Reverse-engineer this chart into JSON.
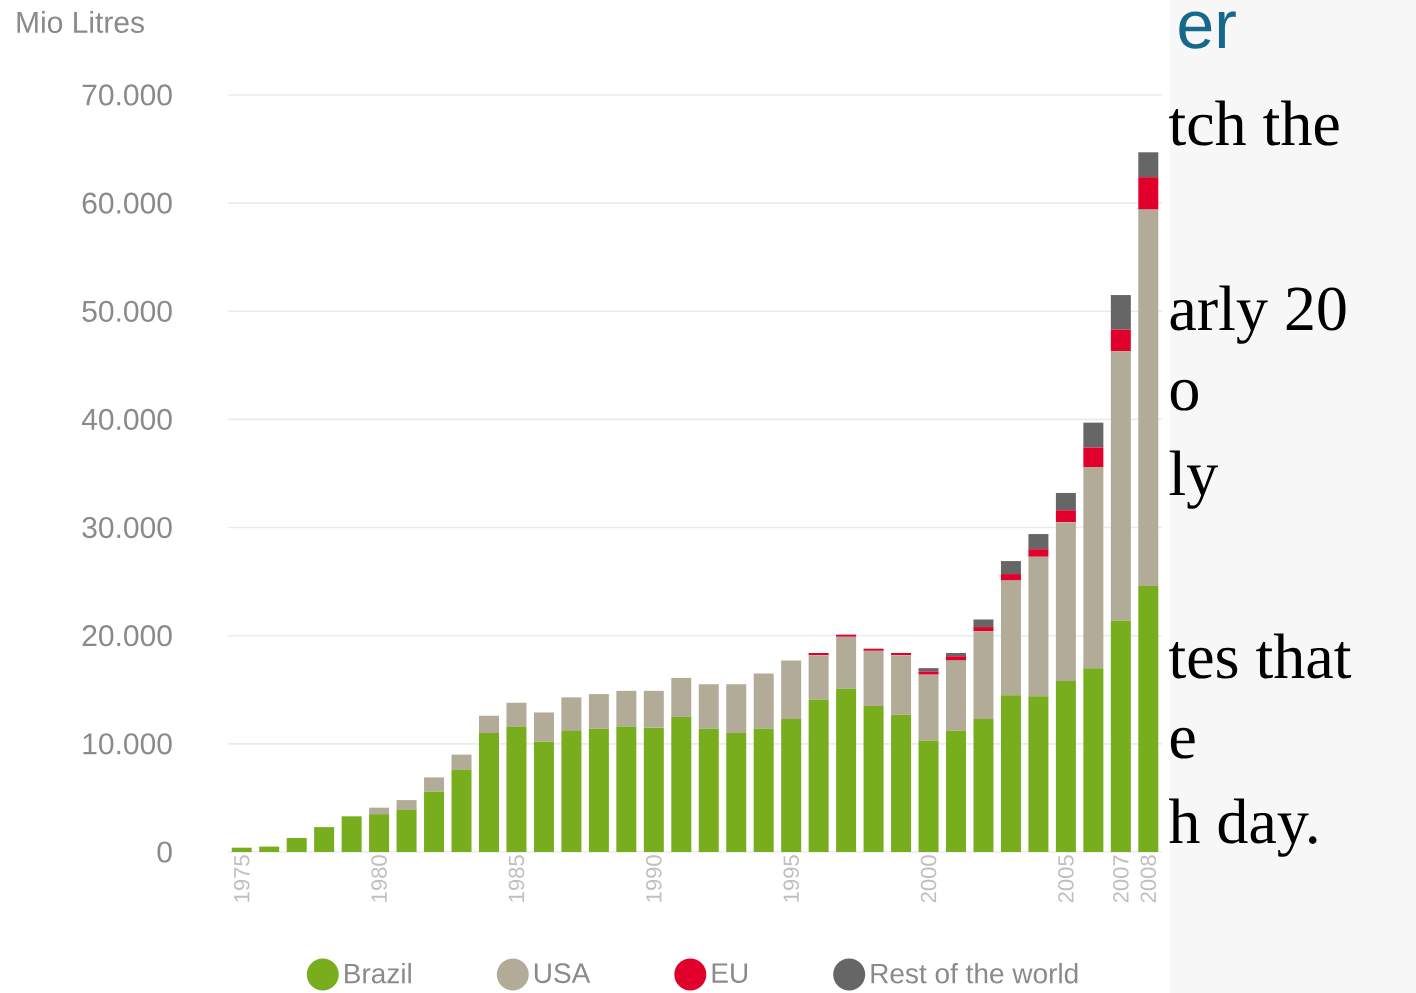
{
  "chart_data": {
    "type": "bar",
    "stacked": true,
    "ylabel": "Mio Litres",
    "categories": [
      "1975",
      null,
      null,
      null,
      null,
      "1980",
      null,
      null,
      null,
      null,
      "1985",
      null,
      null,
      null,
      null,
      "1990",
      null,
      null,
      null,
      null,
      "1995",
      null,
      null,
      null,
      null,
      "2000",
      null,
      null,
      null,
      null,
      "2005",
      null,
      "2007",
      "2008"
    ],
    "series": [
      {
        "name": "Brazil",
        "color": "#78ad1e",
        "values": [
          400,
          500,
          1300,
          2300,
          3300,
          3500,
          3900,
          5600,
          7600,
          11000,
          11600,
          10200,
          11200,
          11400,
          11600,
          11500,
          12500,
          11400,
          11000,
          11400,
          12300,
          14100,
          15100,
          13500,
          12700,
          10300,
          11200,
          12300,
          14500,
          14400,
          15800,
          17000,
          21400,
          24600
        ]
      },
      {
        "name": "USA",
        "color": "#b2ab98",
        "values": [
          0,
          0,
          0,
          0,
          0,
          600,
          900,
          1300,
          1400,
          1600,
          2200,
          2700,
          3100,
          3200,
          3300,
          3400,
          3600,
          4100,
          4500,
          5100,
          5400,
          4100,
          4800,
          5100,
          5500,
          6100,
          6500,
          8100,
          10600,
          12900,
          14700,
          18600,
          24900,
          34800
        ]
      },
      {
        "name": "EU",
        "color": "#e0002b",
        "values": [
          0,
          0,
          0,
          0,
          0,
          0,
          0,
          0,
          0,
          0,
          0,
          0,
          0,
          0,
          0,
          0,
          0,
          0,
          0,
          0,
          0,
          200,
          200,
          200,
          200,
          300,
          400,
          400,
          600,
          700,
          1100,
          1800,
          2000,
          3000
        ]
      },
      {
        "name": "Rest of the world",
        "color": "#666666",
        "values": [
          0,
          0,
          0,
          0,
          0,
          0,
          0,
          0,
          0,
          0,
          0,
          0,
          0,
          0,
          0,
          0,
          0,
          0,
          0,
          0,
          0,
          0,
          0,
          0,
          0,
          300,
          300,
          700,
          1200,
          1400,
          1600,
          2300,
          3200,
          2300
        ]
      }
    ],
    "ylim": [
      0,
      70000
    ],
    "yticks": [
      0,
      {
        "value": 10000,
        "label": "10.000"
      },
      {
        "value": 20000,
        "label": "20.000"
      },
      {
        "value": 30000,
        "label": "30.000"
      },
      {
        "value": 40000,
        "label": "40.000"
      },
      {
        "value": 50000,
        "label": "50.000"
      },
      {
        "value": 60000,
        "label": "60.000"
      },
      {
        "value": 70000,
        "label": "70.000"
      }
    ],
    "grid": "y",
    "legend": "bottom",
    "annotations": [
      "er",
      "tch the",
      "arly 20",
      "o",
      "ly",
      "tes that",
      "e",
      "h day."
    ]
  }
}
